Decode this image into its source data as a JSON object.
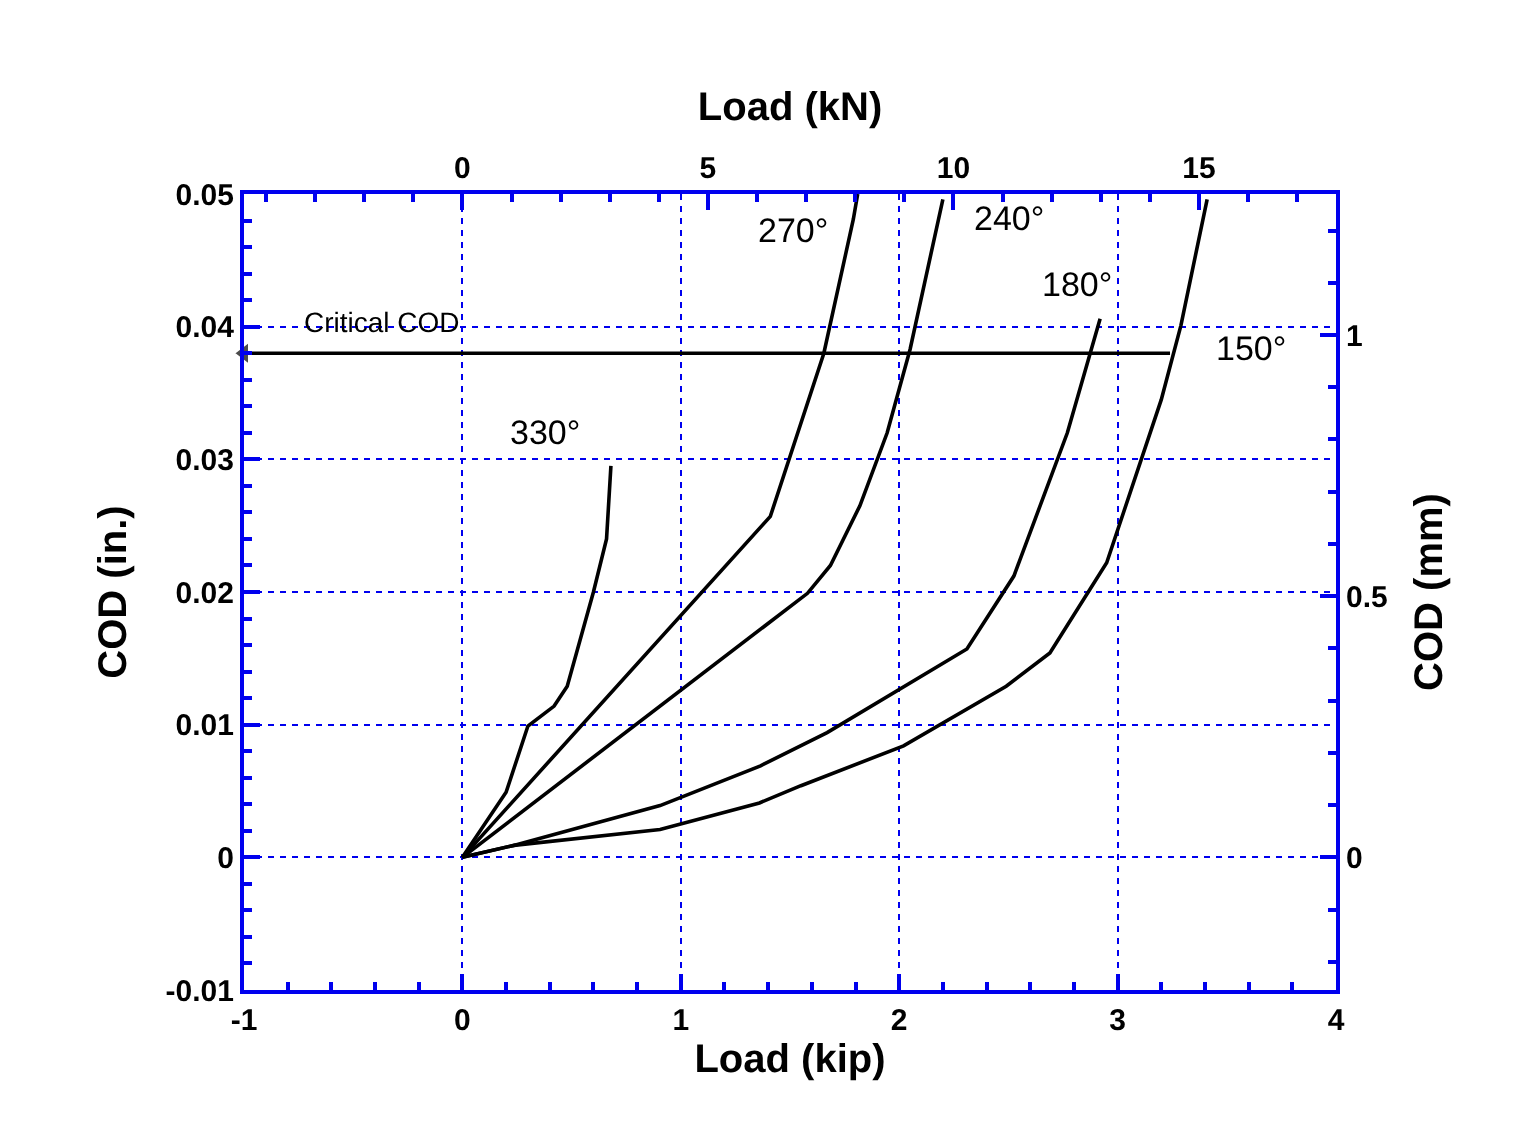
{
  "chart_data": {
    "type": "line",
    "xlabel": "Load (kip)",
    "ylabel": "COD (in.)",
    "x2label": "Load (kN)",
    "y2label": "COD (mm)",
    "xlim": [
      -1,
      4
    ],
    "xticks": [
      -1,
      0,
      1,
      2,
      3,
      4
    ],
    "ylim": [
      -0.01,
      0.05
    ],
    "yticks": [
      -0.01,
      0,
      0.01,
      0.02,
      0.03,
      0.04,
      0.05
    ],
    "x2lim": [
      -4.448,
      17.79
    ],
    "x2ticks": [
      0,
      5,
      10,
      15
    ],
    "y2lim": [
      -0.254,
      1.27
    ],
    "y2ticks": [
      0,
      0.5,
      1
    ],
    "grid": true,
    "legend": false,
    "line_style": "solid",
    "series": [
      {
        "name": "330°",
        "color": "#000000",
        "x": [
          0,
          0.2,
          0.3,
          0.42,
          0.48,
          0.6,
          0.66,
          0.68
        ],
        "values": [
          0,
          0.0049,
          0.0099,
          0.0114,
          0.0129,
          0.02,
          0.024,
          0.0295
        ]
      },
      {
        "name": "270°",
        "color": "#000000",
        "x": [
          0,
          1.41,
          1.655,
          1.79,
          1.81
        ],
        "values": [
          0,
          0.0257,
          0.038,
          0.0481,
          0.05
        ]
      },
      {
        "name": "240°",
        "color": "#000000",
        "x": [
          0,
          1.58,
          1.685,
          1.82,
          1.945,
          2.05,
          2.2
        ],
        "values": [
          0,
          0.0199,
          0.022,
          0.0265,
          0.032,
          0.0383,
          0.0496
        ]
      },
      {
        "name": "180°",
        "color": "#000000",
        "x": [
          0,
          0.235,
          0.905,
          1.365,
          1.67,
          2.31,
          2.525,
          2.77,
          2.92
        ],
        "values": [
          0,
          0.0009,
          0.0039,
          0.0069,
          0.0094,
          0.0157,
          0.0212,
          0.032,
          0.0406
        ]
      },
      {
        "name": "150°",
        "color": "#000000",
        "x": [
          0,
          0.235,
          0.905,
          1.36,
          1.55,
          2.02,
          2.49,
          2.69,
          2.95,
          3.2,
          3.29,
          3.41
        ],
        "values": [
          0,
          0.0009,
          0.0021,
          0.0041,
          0.0054,
          0.0084,
          0.0129,
          0.0154,
          0.0222,
          0.0345,
          0.0401,
          0.0496
        ]
      },
      {
        "color": "#000000",
        "x": [
          3.24,
          -1
        ],
        "values": [
          0.038,
          0.038
        ]
      }
    ],
    "annotations": [
      {
        "text": "Critical COD",
        "x": -1,
        "y": 0.038
      }
    ]
  }
}
